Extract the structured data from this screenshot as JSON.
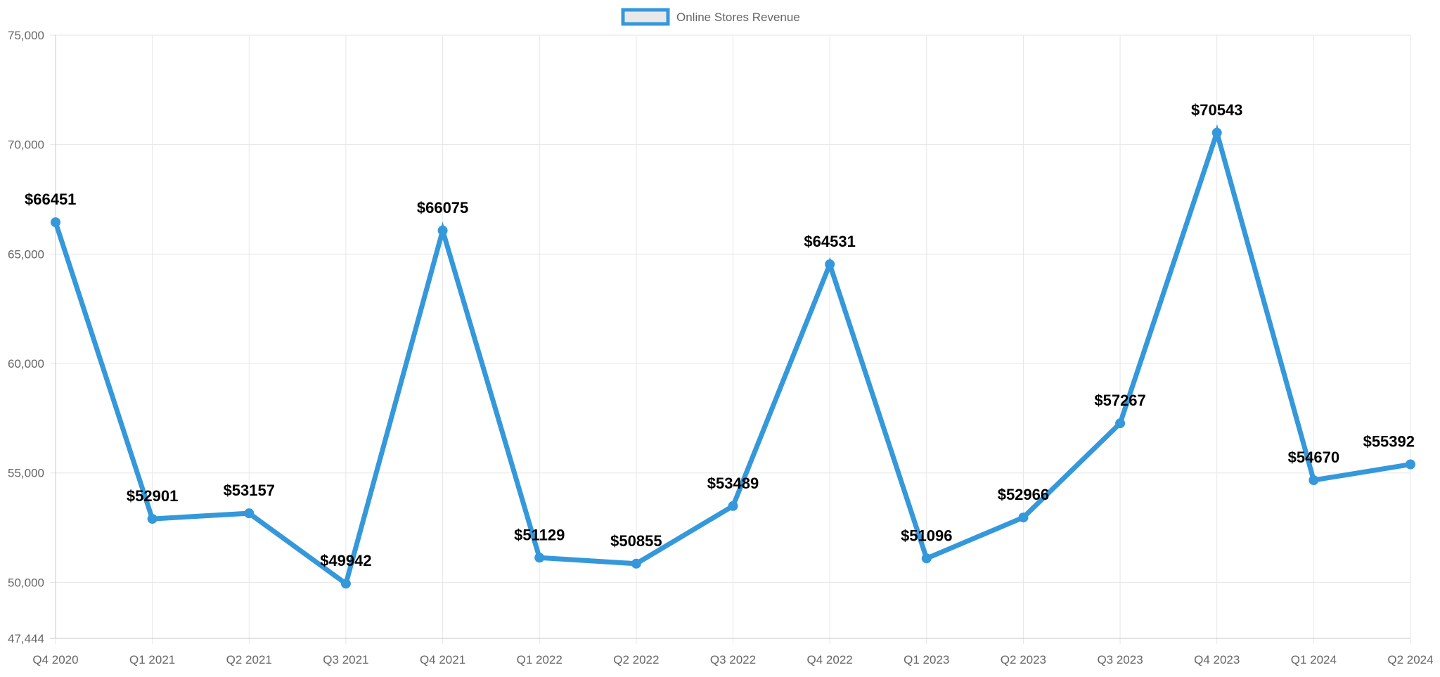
{
  "chart_data": {
    "type": "line",
    "title": "",
    "xlabel": "",
    "ylabel": "",
    "categories": [
      "Q4 2020",
      "Q1 2021",
      "Q2 2021",
      "Q3 2021",
      "Q4 2021",
      "Q1 2022",
      "Q2 2022",
      "Q3 2022",
      "Q4 2022",
      "Q1 2023",
      "Q2 2023",
      "Q3 2023",
      "Q4 2023",
      "Q1 2024",
      "Q2 2024"
    ],
    "series": [
      {
        "name": "Online Stores Revenue",
        "color": "#3498db",
        "values": [
          66451,
          52901,
          53157,
          49942,
          66075,
          51129,
          50855,
          53489,
          64531,
          51096,
          52966,
          57267,
          70543,
          54670,
          55392
        ],
        "data_labels": [
          "$66451",
          "$52901",
          "$53157",
          "$49942",
          "$66075",
          "$51129",
          "$50855",
          "$53489",
          "$64531",
          "$51096",
          "$52966",
          "$57267",
          "$70543",
          "$54670",
          "$55392"
        ]
      }
    ],
    "ylim": [
      47444,
      75000
    ],
    "y_ticks": [
      47444,
      50000,
      55000,
      60000,
      65000,
      70000,
      75000
    ],
    "y_tick_labels": [
      "47,444",
      "50,000",
      "55,000",
      "60,000",
      "65,000",
      "70,000",
      "75,000"
    ],
    "grid": true,
    "legend_position": "top-center"
  }
}
